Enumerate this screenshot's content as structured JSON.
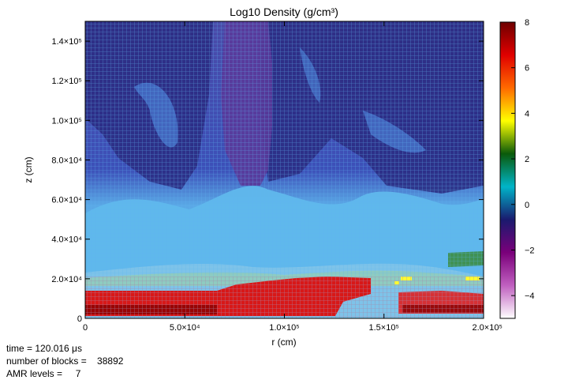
{
  "chart_data": {
    "type": "heatmap",
    "title": "Log10 Density (g/cm³)",
    "xlabel": "r (cm)",
    "ylabel": "z (cm)",
    "xlim": [
      0,
      200000
    ],
    "ylim": [
      0,
      150000
    ],
    "x_ticks": [
      {
        "value": 0,
        "label": "0"
      },
      {
        "value": 50000,
        "label": "5.0×10⁴"
      },
      {
        "value": 100000,
        "label": "1.0×10⁵"
      },
      {
        "value": 150000,
        "label": "1.5×10⁵"
      },
      {
        "value": 200000,
        "label": "2.0×10⁵"
      }
    ],
    "y_ticks": [
      {
        "value": 0,
        "label": "0"
      },
      {
        "value": 20000,
        "label": "2.0×10⁴"
      },
      {
        "value": 40000,
        "label": "4.0×10⁴"
      },
      {
        "value": 60000,
        "label": "6.0×10⁴"
      },
      {
        "value": 80000,
        "label": "8.0×10⁴"
      },
      {
        "value": 100000,
        "label": "1.0×10⁵"
      },
      {
        "value": 120000,
        "label": "1.2×10⁵"
      },
      {
        "value": 140000,
        "label": "1.4×10⁵"
      }
    ],
    "colorbar": {
      "range": [
        -5,
        8
      ],
      "ticks": [
        -4,
        -2,
        0,
        2,
        4,
        6,
        8
      ],
      "tick_labels": [
        "−4",
        "−2",
        "0",
        "2",
        "4",
        "6",
        "8"
      ],
      "colors": [
        "#ffffff",
        "#c060c0",
        "#7a007a",
        "#1a1a6e",
        "#00b4c8",
        "#0a5a0a",
        "#ffff00",
        "#ff6a00",
        "#e00000",
        "#6e0000"
      ]
    },
    "grid": true
  },
  "info": {
    "time": "time = 120.016 μs",
    "blocks": "number of blocks =    38892",
    "levels": "AMR levels =     7"
  }
}
